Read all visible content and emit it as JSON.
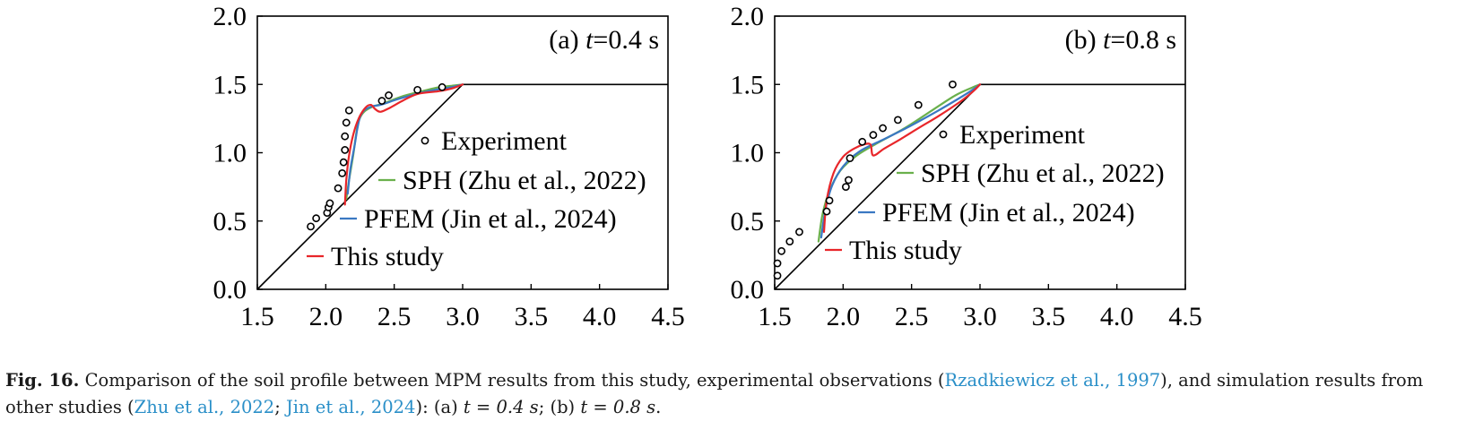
{
  "chart_data": [
    {
      "type": "line",
      "panel_label": "(a) ",
      "time_symbol": "t",
      "time_value": "=0.4 s",
      "xlim": [
        1.5,
        4.5
      ],
      "ylim": [
        0.0,
        2.0
      ],
      "xticks": [
        "1.5",
        "2.0",
        "2.5",
        "3.0",
        "3.5",
        "4.0",
        "4.5"
      ],
      "yticks": [
        "0.0",
        "0.5",
        "1.0",
        "1.5",
        "2.0"
      ],
      "legend": [
        "Experiment",
        "SPH (Zhu et al., 2022)",
        "PFEM (Jin et al., 2024)",
        "This study"
      ],
      "boundary": {
        "name": "Slope boundary",
        "x": [
          1.5,
          3.0,
          4.5
        ],
        "y": [
          0.0,
          1.5,
          1.5
        ]
      },
      "experiment": {
        "x": [
          1.89,
          1.93,
          2.01,
          2.02,
          2.03,
          2.09,
          2.12,
          2.13,
          2.14,
          2.14,
          2.15,
          2.17,
          2.41,
          2.46,
          2.67,
          2.85
        ],
        "y": [
          0.46,
          0.52,
          0.56,
          0.6,
          0.63,
          0.74,
          0.85,
          0.93,
          1.02,
          1.12,
          1.22,
          1.31,
          1.38,
          1.42,
          1.46,
          1.48
        ]
      },
      "series": [
        {
          "name": "SPH (Zhu et al., 2022)",
          "color": "#6ab04c",
          "x": [
            2.15,
            2.17,
            2.2,
            2.22,
            2.24,
            2.28,
            2.35,
            2.42,
            2.55,
            2.7,
            2.83,
            2.92,
            3.0
          ],
          "y": [
            0.66,
            0.8,
            0.98,
            1.12,
            1.23,
            1.3,
            1.34,
            1.36,
            1.41,
            1.45,
            1.48,
            1.49,
            1.5
          ]
        },
        {
          "name": "PFEM (Jin et al., 2024)",
          "color": "#3a78c2",
          "x": [
            2.16,
            2.18,
            2.21,
            2.23,
            2.25,
            2.28,
            2.34,
            2.4,
            2.52,
            2.66,
            2.8,
            2.92,
            3.0
          ],
          "y": [
            0.7,
            0.88,
            1.05,
            1.17,
            1.26,
            1.31,
            1.34,
            1.35,
            1.39,
            1.43,
            1.46,
            1.48,
            1.5
          ]
        },
        {
          "name": "This study",
          "color": "#e8262a",
          "x": [
            2.14,
            2.15,
            2.17,
            2.2,
            2.24,
            2.29,
            2.33,
            2.36,
            2.4,
            2.47,
            2.56,
            2.67,
            2.82,
            2.92,
            3.0
          ],
          "y": [
            0.62,
            0.8,
            0.98,
            1.13,
            1.25,
            1.33,
            1.35,
            1.32,
            1.3,
            1.33,
            1.38,
            1.43,
            1.45,
            1.47,
            1.5
          ]
        }
      ]
    },
    {
      "type": "line",
      "panel_label": "(b) ",
      "time_symbol": "t",
      "time_value": "=0.8 s",
      "xlim": [
        1.5,
        4.5
      ],
      "ylim": [
        0.0,
        2.0
      ],
      "xticks": [
        "1.5",
        "2.0",
        "2.5",
        "3.0",
        "3.5",
        "4.0",
        "4.5"
      ],
      "yticks": [
        "0.0",
        "0.5",
        "1.0",
        "1.5",
        "2.0"
      ],
      "legend": [
        "Experiment",
        "SPH (Zhu et al., 2022)",
        "PFEM (Jin et al., 2024)",
        "This study"
      ],
      "boundary": {
        "name": "Slope boundary",
        "x": [
          1.5,
          3.0,
          4.5
        ],
        "y": [
          0.0,
          1.5,
          1.5
        ]
      },
      "experiment": {
        "x": [
          1.52,
          1.52,
          1.55,
          1.61,
          1.68,
          1.88,
          1.9,
          2.02,
          2.04,
          2.05,
          2.14,
          2.22,
          2.29,
          2.4,
          2.55,
          2.8
        ],
        "y": [
          0.1,
          0.19,
          0.28,
          0.35,
          0.42,
          0.57,
          0.65,
          0.75,
          0.8,
          0.96,
          1.08,
          1.13,
          1.18,
          1.24,
          1.35,
          1.5
        ]
      },
      "series": [
        {
          "name": "SPH (Zhu et al., 2022)",
          "color": "#6ab04c",
          "x": [
            1.82,
            1.85,
            1.9,
            1.98,
            2.1,
            2.25,
            2.45,
            2.65,
            2.82,
            2.95,
            3.0
          ],
          "y": [
            0.35,
            0.55,
            0.72,
            0.87,
            0.98,
            1.07,
            1.18,
            1.31,
            1.42,
            1.48,
            1.5
          ]
        },
        {
          "name": "PFEM (Jin et al., 2024)",
          "color": "#3a78c2",
          "x": [
            1.84,
            1.87,
            1.92,
            2.0,
            2.12,
            2.28,
            2.48,
            2.68,
            2.85,
            2.96,
            3.0
          ],
          "y": [
            0.38,
            0.58,
            0.76,
            0.9,
            1.01,
            1.09,
            1.19,
            1.3,
            1.4,
            1.47,
            1.5
          ]
        },
        {
          "name": "This study",
          "color": "#e8262a",
          "x": [
            1.86,
            1.88,
            1.93,
            2.0,
            2.08,
            2.15,
            2.2,
            2.22,
            2.3,
            2.42,
            2.55,
            2.7,
            2.85,
            2.95,
            3.0
          ],
          "y": [
            0.42,
            0.65,
            0.85,
            0.97,
            1.03,
            1.06,
            1.06,
            0.98,
            1.03,
            1.1,
            1.18,
            1.27,
            1.37,
            1.45,
            1.5
          ]
        }
      ]
    }
  ],
  "caption": {
    "label": "Fig. 16.",
    "text_1": "Comparison of the soil profile between MPM results from this study, experimental observations (",
    "ref_1": "Rzadkiewicz et al., 1997",
    "text_2": "), and simulation results from other studies (",
    "ref_2": "Zhu et al., 2022",
    "sep": "; ",
    "ref_3": "Jin et al., 2024",
    "text_3": "): (a) ",
    "math_a": "t = 0.4 s",
    "text_4": "; (b) ",
    "math_b": "t = 0.8 s",
    "text_5": "."
  }
}
